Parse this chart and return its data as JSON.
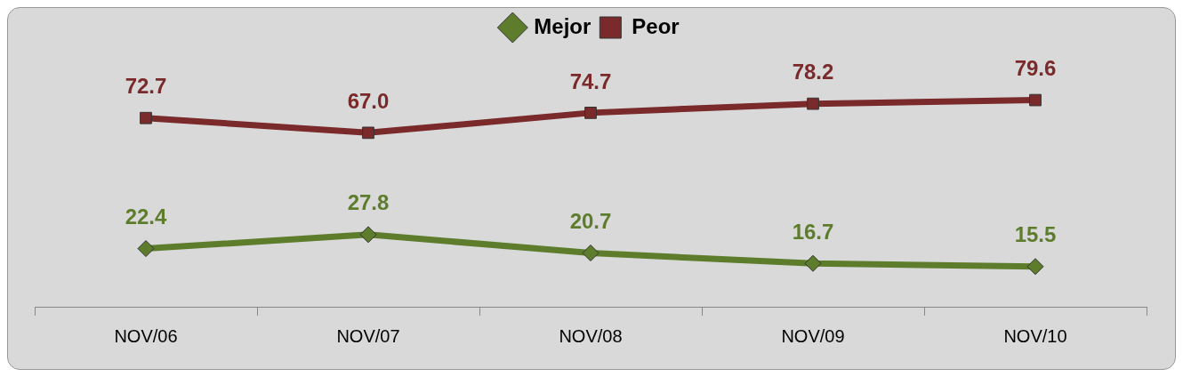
{
  "chart_data": {
    "type": "line",
    "categories": [
      "NOV/06",
      "NOV/07",
      "NOV/08",
      "NOV/09",
      "NOV/10"
    ],
    "series": [
      {
        "name": "Mejor",
        "color": "#5e7d2c",
        "marker": "diamond",
        "values": [
          22.4,
          27.8,
          20.7,
          16.7,
          15.5
        ],
        "value_labels": [
          "22.4",
          "27.8",
          "20.7",
          "16.7",
          "15.5"
        ]
      },
      {
        "name": "Peor",
        "color": "#7a2a2a",
        "marker": "square",
        "values": [
          72.7,
          67.0,
          74.7,
          78.2,
          79.6
        ],
        "value_labels": [
          "72.7",
          "67.0",
          "74.7",
          "78.2",
          "79.6"
        ]
      }
    ],
    "tick_labels": "x",
    "grid": false,
    "legend": "top",
    "line_style": "solid"
  }
}
